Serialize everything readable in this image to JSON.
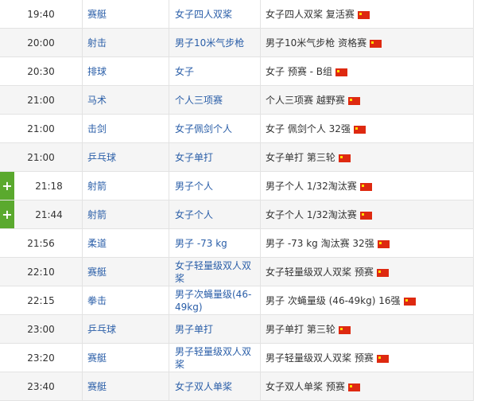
{
  "colors": {
    "link": "#2a5ea8",
    "add_button": "#5aa92e",
    "flag": "#de2910"
  },
  "rows": [
    {
      "time": "19:40",
      "sport": "赛艇",
      "event": "女子四人双桨",
      "detail": "女子四人双桨 复活赛",
      "flag": "china-flag-icon",
      "add": false
    },
    {
      "time": "20:00",
      "sport": "射击",
      "event": "男子10米气步枪",
      "detail": "男子10米气步枪 资格赛",
      "flag": "china-flag-icon",
      "add": false
    },
    {
      "time": "20:30",
      "sport": "排球",
      "event": "女子",
      "detail": "女子 预赛 - B组",
      "flag": "china-flag-icon",
      "add": false
    },
    {
      "time": "21:00",
      "sport": "马术",
      "event": "个人三项赛",
      "detail": "个人三项赛 越野赛",
      "flag": "china-flag-icon",
      "add": false
    },
    {
      "time": "21:00",
      "sport": "击剑",
      "event": "女子佩剑个人",
      "detail": "女子 佩剑个人 32强",
      "flag": "china-flag-icon",
      "add": false
    },
    {
      "time": "21:00",
      "sport": "乒乓球",
      "event": "女子单打",
      "detail": "女子单打 第三轮",
      "flag": "china-flag-icon",
      "add": false
    },
    {
      "time": "21:18",
      "sport": "射箭",
      "event": "男子个人",
      "detail": "男子个人 1/32淘汰赛",
      "flag": "china-flag-icon",
      "add": true,
      "add_label": "+"
    },
    {
      "time": "21:44",
      "sport": "射箭",
      "event": "女子个人",
      "detail": "女子个人 1/32淘汰赛",
      "flag": "china-flag-icon",
      "add": true,
      "add_label": "+"
    },
    {
      "time": "21:56",
      "sport": "柔道",
      "event": "男子 -73 kg",
      "detail": "男子 -73 kg 淘汰赛 32强",
      "flag": "china-flag-icon",
      "add": false
    },
    {
      "time": "22:10",
      "sport": "赛艇",
      "event": "女子轻量级双人双桨",
      "detail": "女子轻量级双人双桨 预赛",
      "flag": "china-flag-icon",
      "add": false
    },
    {
      "time": "22:15",
      "sport": "拳击",
      "event": "男子次蝇量级(46-49kg)",
      "detail": "男子 次蝇量级 (46-49kg) 16强",
      "flag": "china-flag-icon",
      "add": false
    },
    {
      "time": "23:00",
      "sport": "乒乓球",
      "event": "男子单打",
      "detail": "男子单打 第三轮",
      "flag": "china-flag-icon",
      "add": false
    },
    {
      "time": "23:20",
      "sport": "赛艇",
      "event": "男子轻量级双人双桨",
      "detail": "男子轻量级双人双桨 预赛",
      "flag": "china-flag-icon",
      "add": false
    },
    {
      "time": "23:40",
      "sport": "赛艇",
      "event": "女子双人单桨",
      "detail": "女子双人单桨 预赛",
      "flag": "china-flag-icon",
      "add": false
    }
  ]
}
